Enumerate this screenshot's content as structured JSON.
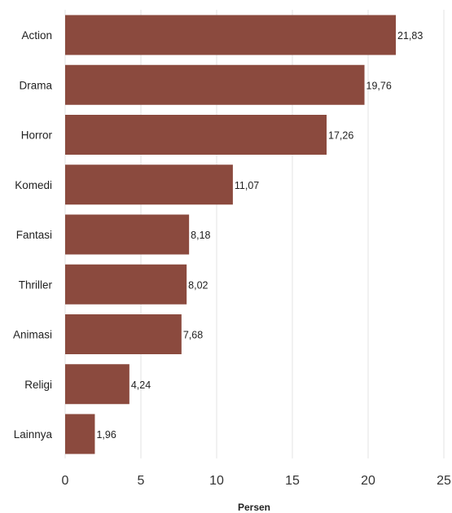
{
  "chart_data": {
    "type": "bar",
    "orientation": "horizontal",
    "categories": [
      "Action",
      "Drama",
      "Horror",
      "Komedi",
      "Fantasi",
      "Thriller",
      "Animasi",
      "Religi",
      "Lainnya"
    ],
    "values": [
      21.83,
      19.76,
      17.26,
      11.07,
      8.18,
      8.02,
      7.68,
      4.24,
      1.96
    ],
    "value_labels": [
      "21,83",
      "19,76",
      "17,26",
      "11,07",
      "8,18",
      "8,02",
      "7,68",
      "4,24",
      "1,96"
    ],
    "xlabel": "Persen",
    "ylabel": "",
    "xlim": [
      0,
      25
    ],
    "xticks": [
      0,
      5,
      10,
      15,
      20,
      25
    ],
    "grid": "vertical",
    "legend": "none",
    "bar_color": "#8b4a3e"
  }
}
